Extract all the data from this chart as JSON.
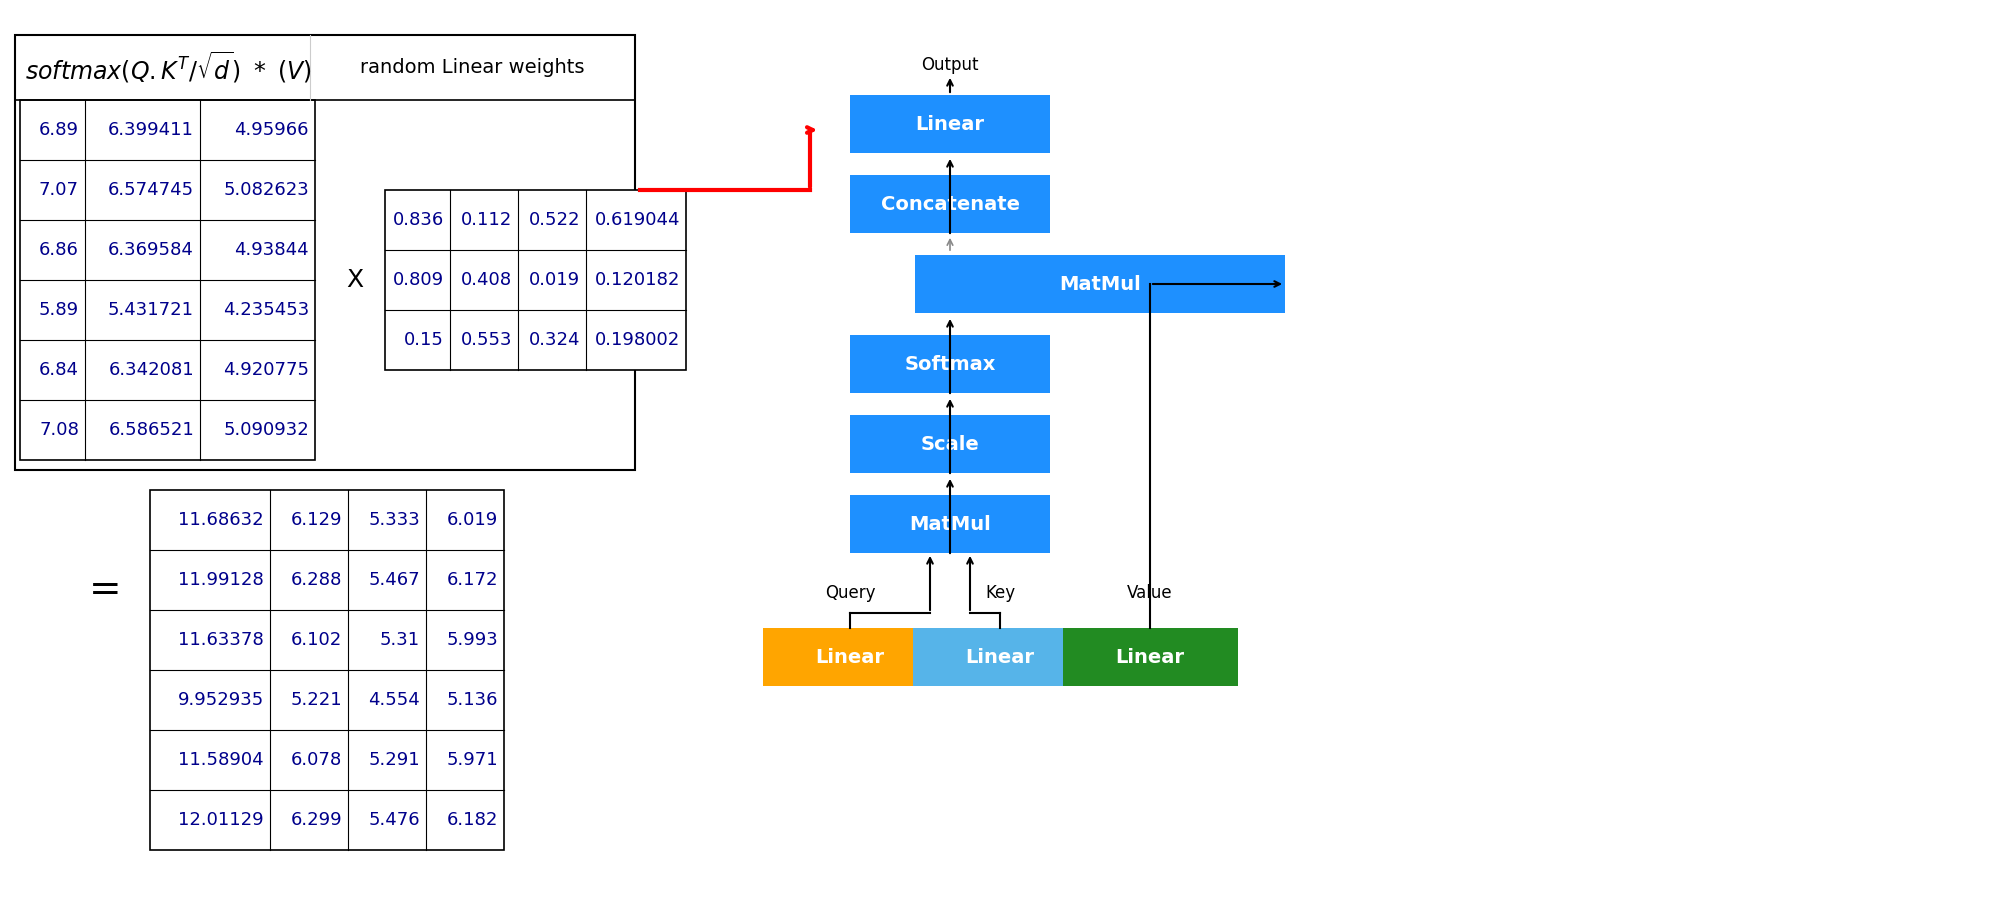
{
  "left_matrix": [
    [
      "6.89",
      "6.399411",
      "4.95966"
    ],
    [
      "7.07",
      "6.574745",
      "5.082623"
    ],
    [
      "6.86",
      "6.369584",
      "4.93844"
    ],
    [
      "5.89",
      "5.431721",
      "4.235453"
    ],
    [
      "6.84",
      "6.342081",
      "4.920775"
    ],
    [
      "7.08",
      "6.586521",
      "5.090932"
    ]
  ],
  "right_matrix": [
    [
      "0.836",
      "0.112",
      "0.522",
      "0.619044"
    ],
    [
      "0.809",
      "0.408",
      "0.019",
      "0.120182"
    ],
    [
      "0.15",
      "0.553",
      "0.324",
      "0.198002"
    ]
  ],
  "result_matrix": [
    [
      "11.68632",
      "6.129",
      "5.333",
      "6.019"
    ],
    [
      "11.99128",
      "6.288",
      "5.467",
      "6.172"
    ],
    [
      "11.63378",
      "6.102",
      "5.31",
      "5.993"
    ],
    [
      "9.952935",
      "5.221",
      "4.554",
      "5.136"
    ],
    [
      "11.58904",
      "6.078",
      "5.291",
      "5.971"
    ],
    [
      "12.01129",
      "6.299",
      "5.476",
      "6.182"
    ]
  ],
  "bg_color": "#FFFFFF",
  "table_text_color": "#00008B",
  "table_border_color": "#000000",
  "blue": "#1E90FF",
  "light_blue": "#56B4E9",
  "orange": "#FFA500",
  "green": "#228B22"
}
